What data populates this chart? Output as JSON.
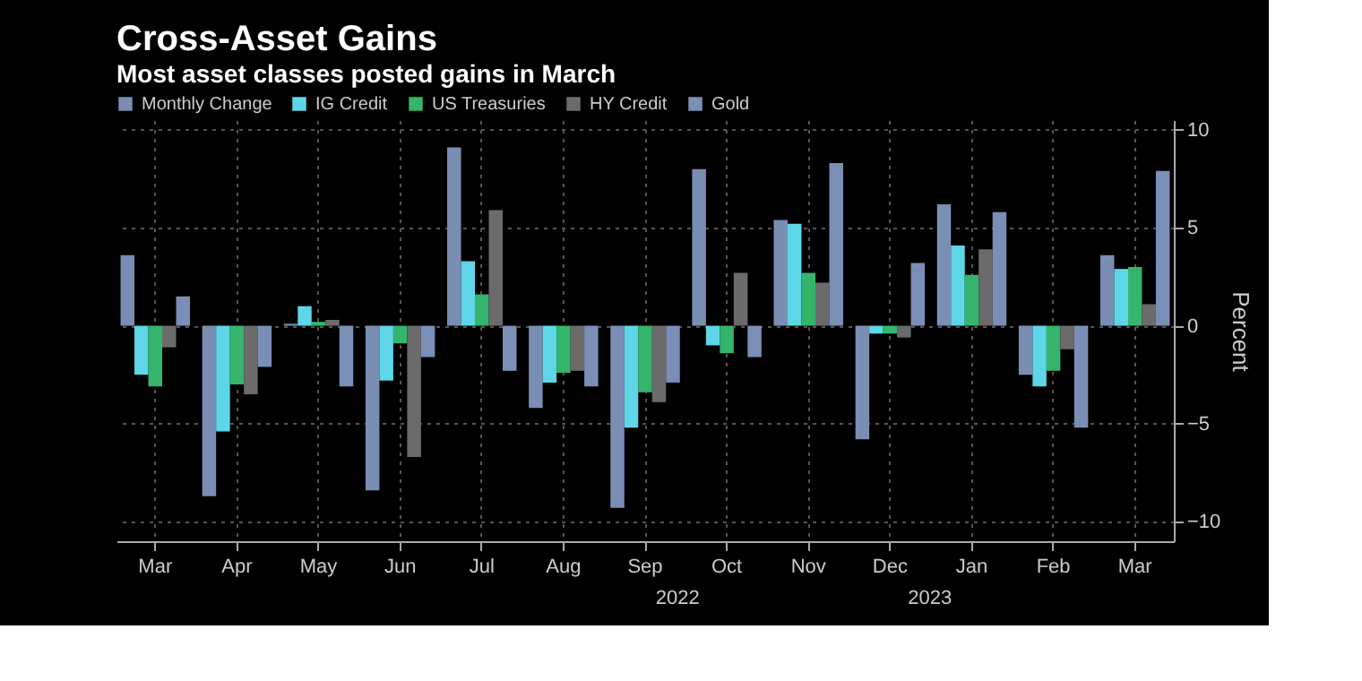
{
  "chart_data": {
    "type": "bar",
    "title": "Cross-Asset Gains",
    "subtitle": "Most asset classes posted gains in March",
    "ylabel": "Percent",
    "categories": [
      "Mar",
      "Apr",
      "May",
      "Jun",
      "Jul",
      "Aug",
      "Sep",
      "Oct",
      "Nov",
      "Dec",
      "Jan",
      "Feb",
      "Mar"
    ],
    "series": [
      {
        "name": "Monthly Change",
        "color": "#7a8db3",
        "values": [
          3.6,
          -8.7,
          0.1,
          -8.4,
          9.1,
          -4.2,
          -9.3,
          8.0,
          5.4,
          -5.8,
          6.2,
          -2.5,
          3.6
        ]
      },
      {
        "name": "IG Credit",
        "color": "#5fd6e8",
        "values": [
          -2.5,
          -5.4,
          1.0,
          -2.8,
          3.3,
          -2.9,
          -5.2,
          -1.0,
          5.2,
          -0.4,
          4.1,
          -3.1,
          2.9
        ]
      },
      {
        "name": "US Treasuries",
        "color": "#35b56c",
        "values": [
          -3.1,
          -3.0,
          0.2,
          -0.9,
          1.6,
          -2.4,
          -3.4,
          -1.4,
          2.7,
          -0.4,
          2.6,
          -2.3,
          3.0
        ]
      },
      {
        "name": "HY Credit",
        "color": "#6b6b6b",
        "values": [
          -1.1,
          -3.5,
          0.3,
          -6.7,
          5.9,
          -2.3,
          -3.9,
          2.7,
          2.2,
          -0.6,
          3.9,
          -1.2,
          1.1
        ]
      },
      {
        "name": "Gold",
        "color": "#7b8fb6",
        "values": [
          1.5,
          -2.1,
          -3.1,
          -1.6,
          -2.3,
          -3.1,
          -2.9,
          -1.6,
          8.3,
          3.2,
          5.8,
          -5.2,
          7.9
        ]
      }
    ],
    "ylim": [
      -11,
      10.5
    ],
    "yticks": [
      -10,
      -5,
      0,
      5,
      10
    ],
    "grid": true,
    "legend": "top left",
    "annotations": [
      "2022",
      "2023"
    ]
  }
}
